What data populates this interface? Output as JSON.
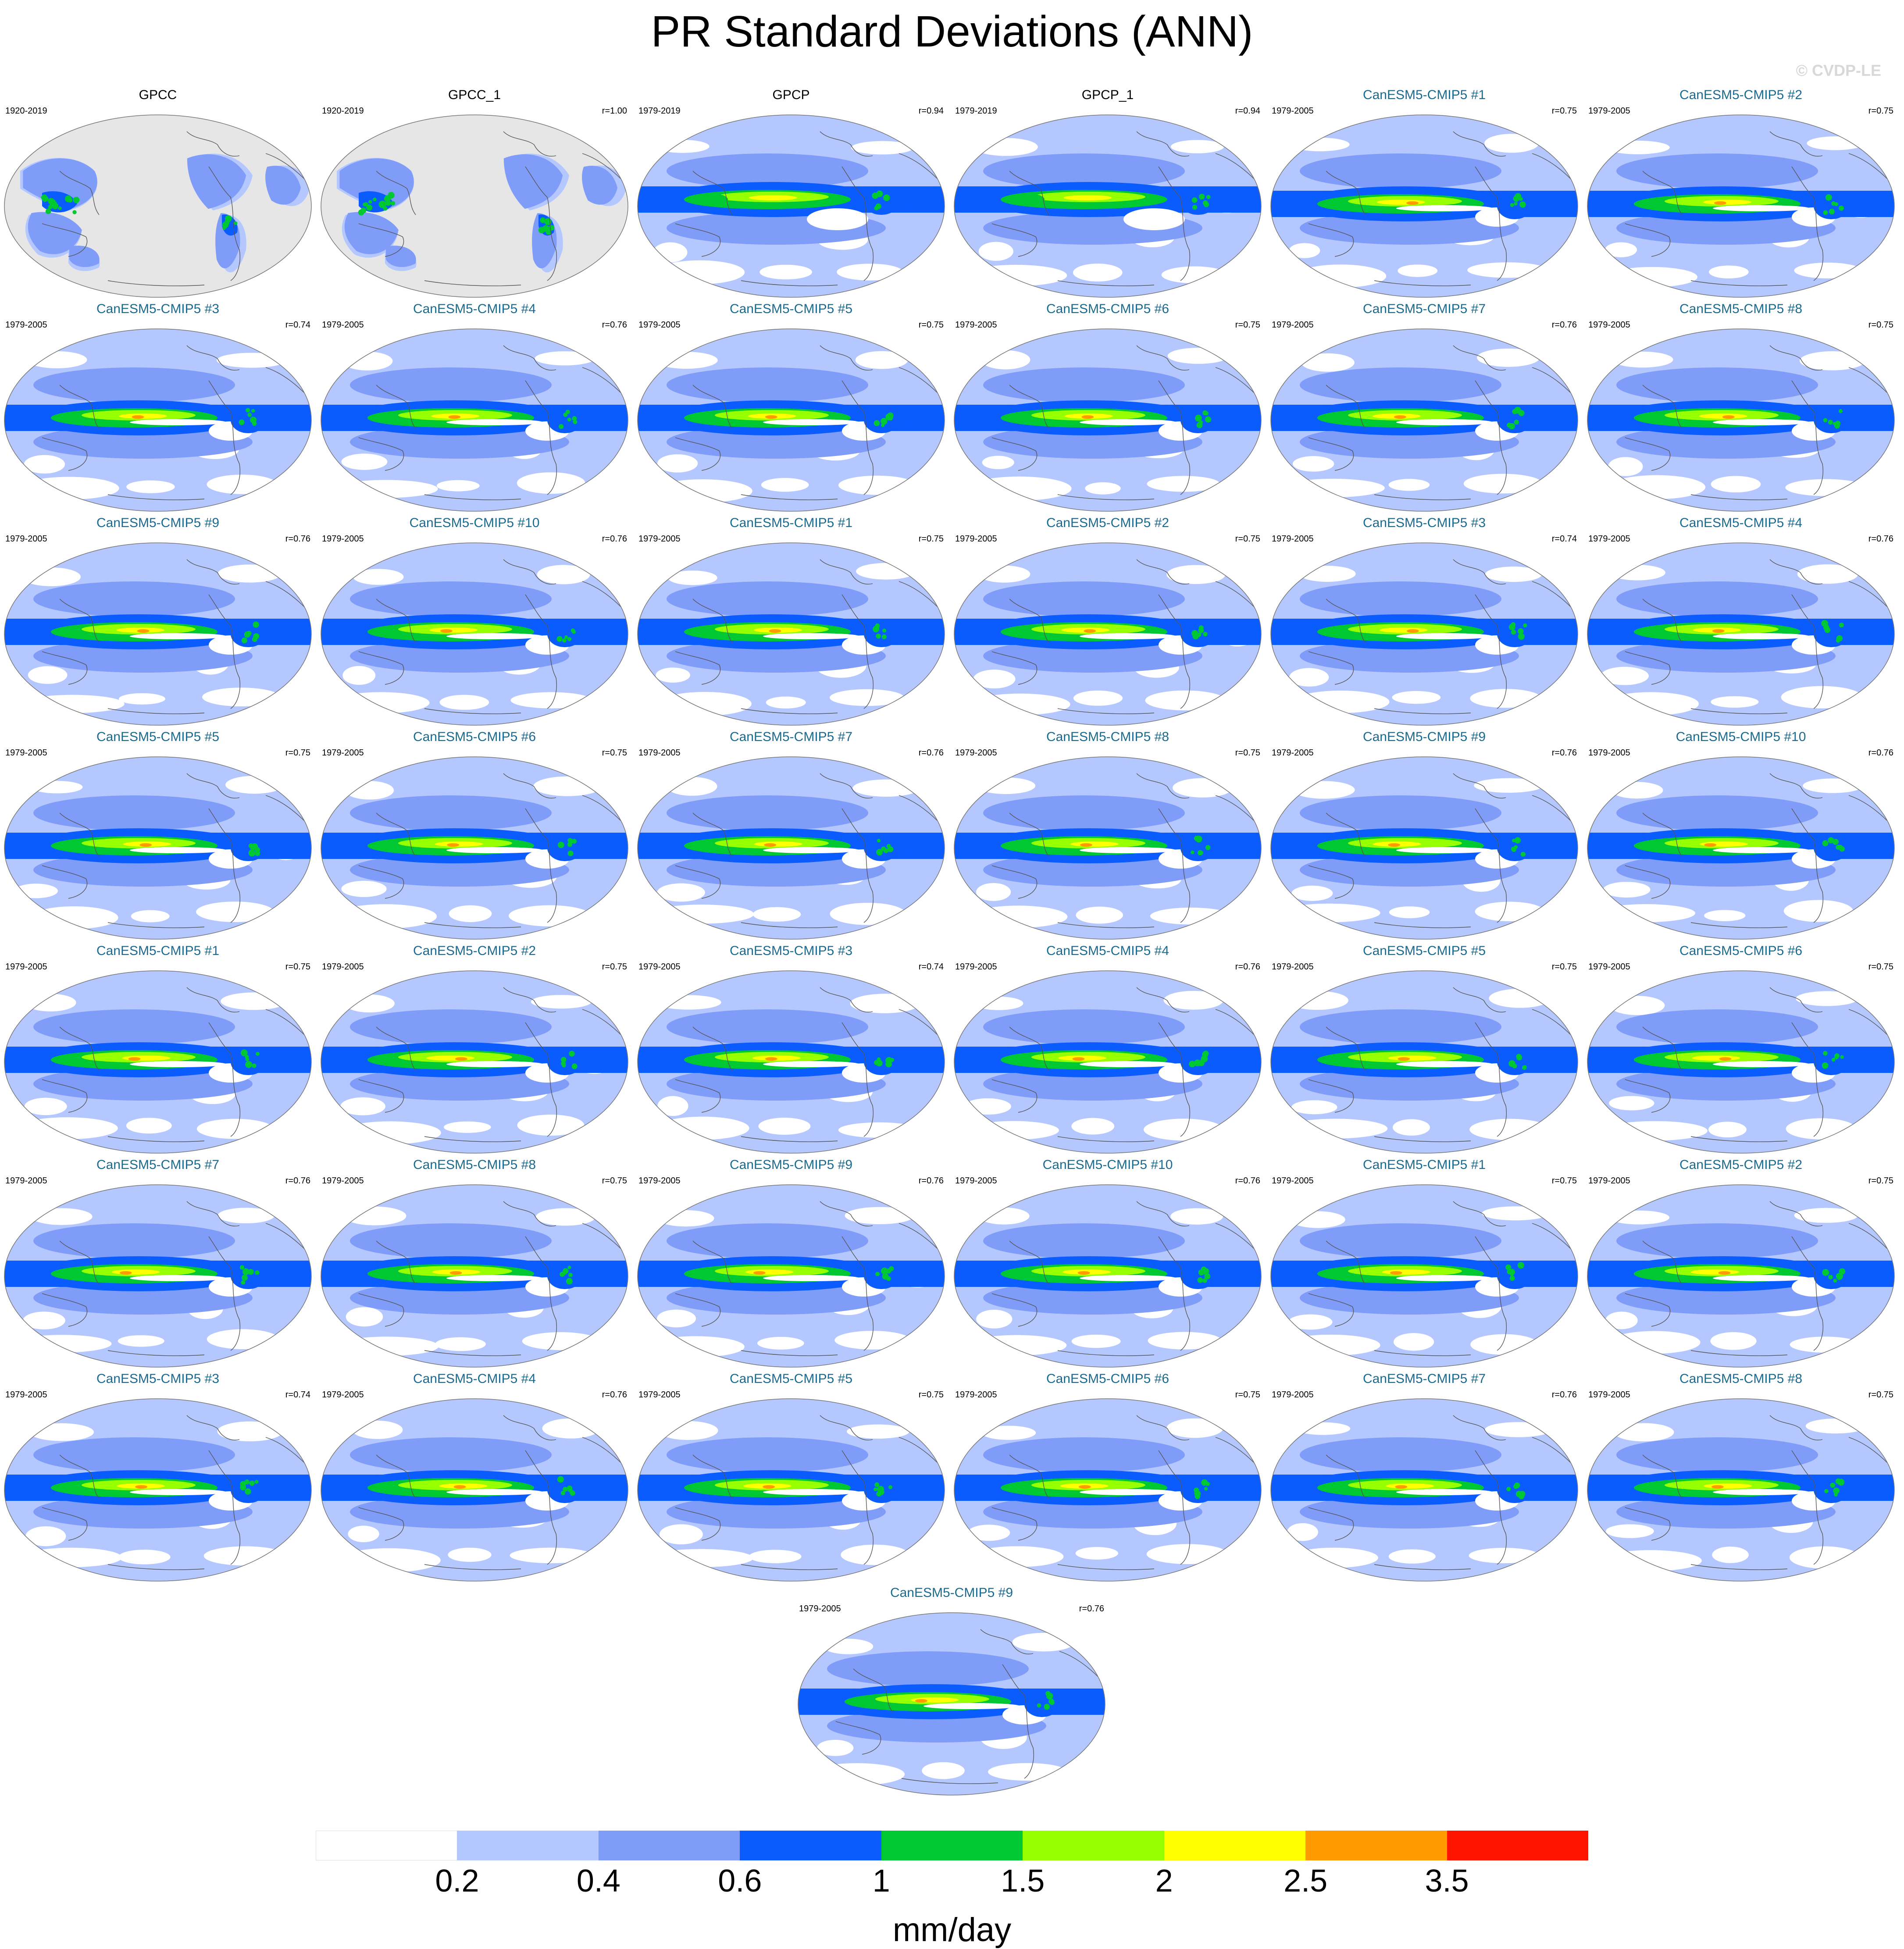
{
  "title": "PR Standard Deviations (ANN)",
  "copyright": "© CVDP-LE",
  "panels": [
    {
      "title": "GPCC",
      "years": "1920-2019",
      "r": "",
      "kind": "obs-land"
    },
    {
      "title": "GPCC_1",
      "years": "1920-2019",
      "r": "r=1.00",
      "kind": "obs-land"
    },
    {
      "title": "GPCP",
      "years": "1979-2019",
      "r": "r=0.94",
      "kind": "obs-global"
    },
    {
      "title": "GPCP_1",
      "years": "1979-2019",
      "r": "r=0.94",
      "kind": "obs-global"
    },
    {
      "title": "CanESM5-CMIP5 #1",
      "years": "1979-2005",
      "r": "r=0.75",
      "kind": "model"
    },
    {
      "title": "CanESM5-CMIP5 #2",
      "years": "1979-2005",
      "r": "r=0.75",
      "kind": "model"
    },
    {
      "title": "CanESM5-CMIP5 #3",
      "years": "1979-2005",
      "r": "r=0.74",
      "kind": "model"
    },
    {
      "title": "CanESM5-CMIP5 #4",
      "years": "1979-2005",
      "r": "r=0.76",
      "kind": "model"
    },
    {
      "title": "CanESM5-CMIP5 #5",
      "years": "1979-2005",
      "r": "r=0.75",
      "kind": "model"
    },
    {
      "title": "CanESM5-CMIP5 #6",
      "years": "1979-2005",
      "r": "r=0.75",
      "kind": "model"
    },
    {
      "title": "CanESM5-CMIP5 #7",
      "years": "1979-2005",
      "r": "r=0.76",
      "kind": "model"
    },
    {
      "title": "CanESM5-CMIP5 #8",
      "years": "1979-2005",
      "r": "r=0.75",
      "kind": "model"
    },
    {
      "title": "CanESM5-CMIP5 #9",
      "years": "1979-2005",
      "r": "r=0.76",
      "kind": "model"
    },
    {
      "title": "CanESM5-CMIP5 #10",
      "years": "1979-2005",
      "r": "r=0.76",
      "kind": "model"
    },
    {
      "title": "CanESM5-CMIP5 #1",
      "years": "1979-2005",
      "r": "r=0.75",
      "kind": "model"
    },
    {
      "title": "CanESM5-CMIP5 #2",
      "years": "1979-2005",
      "r": "r=0.75",
      "kind": "model"
    },
    {
      "title": "CanESM5-CMIP5 #3",
      "years": "1979-2005",
      "r": "r=0.74",
      "kind": "model"
    },
    {
      "title": "CanESM5-CMIP5 #4",
      "years": "1979-2005",
      "r": "r=0.76",
      "kind": "model"
    },
    {
      "title": "CanESM5-CMIP5 #5",
      "years": "1979-2005",
      "r": "r=0.75",
      "kind": "model"
    },
    {
      "title": "CanESM5-CMIP5 #6",
      "years": "1979-2005",
      "r": "r=0.75",
      "kind": "model"
    },
    {
      "title": "CanESM5-CMIP5 #7",
      "years": "1979-2005",
      "r": "r=0.76",
      "kind": "model"
    },
    {
      "title": "CanESM5-CMIP5 #8",
      "years": "1979-2005",
      "r": "r=0.75",
      "kind": "model"
    },
    {
      "title": "CanESM5-CMIP5 #9",
      "years": "1979-2005",
      "r": "r=0.76",
      "kind": "model"
    },
    {
      "title": "CanESM5-CMIP5 #10",
      "years": "1979-2005",
      "r": "r=0.76",
      "kind": "model"
    },
    {
      "title": "CanESM5-CMIP5 #1",
      "years": "1979-2005",
      "r": "r=0.75",
      "kind": "model"
    },
    {
      "title": "CanESM5-CMIP5 #2",
      "years": "1979-2005",
      "r": "r=0.75",
      "kind": "model"
    },
    {
      "title": "CanESM5-CMIP5 #3",
      "years": "1979-2005",
      "r": "r=0.74",
      "kind": "model"
    },
    {
      "title": "CanESM5-CMIP5 #4",
      "years": "1979-2005",
      "r": "r=0.76",
      "kind": "model"
    },
    {
      "title": "CanESM5-CMIP5 #5",
      "years": "1979-2005",
      "r": "r=0.75",
      "kind": "model"
    },
    {
      "title": "CanESM5-CMIP5 #6",
      "years": "1979-2005",
      "r": "r=0.75",
      "kind": "model"
    },
    {
      "title": "CanESM5-CMIP5 #7",
      "years": "1979-2005",
      "r": "r=0.76",
      "kind": "model"
    },
    {
      "title": "CanESM5-CMIP5 #8",
      "years": "1979-2005",
      "r": "r=0.75",
      "kind": "model"
    },
    {
      "title": "CanESM5-CMIP5 #9",
      "years": "1979-2005",
      "r": "r=0.76",
      "kind": "model"
    },
    {
      "title": "CanESM5-CMIP5 #10",
      "years": "1979-2005",
      "r": "r=0.76",
      "kind": "model"
    },
    {
      "title": "CanESM5-CMIP5 #1",
      "years": "1979-2005",
      "r": "r=0.75",
      "kind": "model"
    },
    {
      "title": "CanESM5-CMIP5 #2",
      "years": "1979-2005",
      "r": "r=0.75",
      "kind": "model"
    },
    {
      "title": "CanESM5-CMIP5 #3",
      "years": "1979-2005",
      "r": "r=0.74",
      "kind": "model"
    },
    {
      "title": "CanESM5-CMIP5 #4",
      "years": "1979-2005",
      "r": "r=0.76",
      "kind": "model"
    },
    {
      "title": "CanESM5-CMIP5 #5",
      "years": "1979-2005",
      "r": "r=0.75",
      "kind": "model"
    },
    {
      "title": "CanESM5-CMIP5 #6",
      "years": "1979-2005",
      "r": "r=0.75",
      "kind": "model"
    },
    {
      "title": "CanESM5-CMIP5 #7",
      "years": "1979-2005",
      "r": "r=0.76",
      "kind": "model"
    },
    {
      "title": "CanESM5-CMIP5 #8",
      "years": "1979-2005",
      "r": "r=0.75",
      "kind": "model"
    },
    {
      "title": "CanESM5-CMIP5 #9",
      "years": "1979-2005",
      "r": "r=0.76",
      "kind": "model"
    }
  ],
  "colorbar": {
    "colors": [
      "#ffffff",
      "#b4c8ff",
      "#7f9cf9",
      "#0a5cff",
      "#00c832",
      "#96ff00",
      "#ffff00",
      "#ff9b00",
      "#ff1400"
    ],
    "labels": [
      "0.2",
      "0.4",
      "0.6",
      "1",
      "1.5",
      "2",
      "2.5",
      "3.5"
    ],
    "unit": "mm/day"
  },
  "colors": {
    "land_gray": "#e6e6e6",
    "coastline": "#555555",
    "model_title": "#1b6a8f"
  }
}
